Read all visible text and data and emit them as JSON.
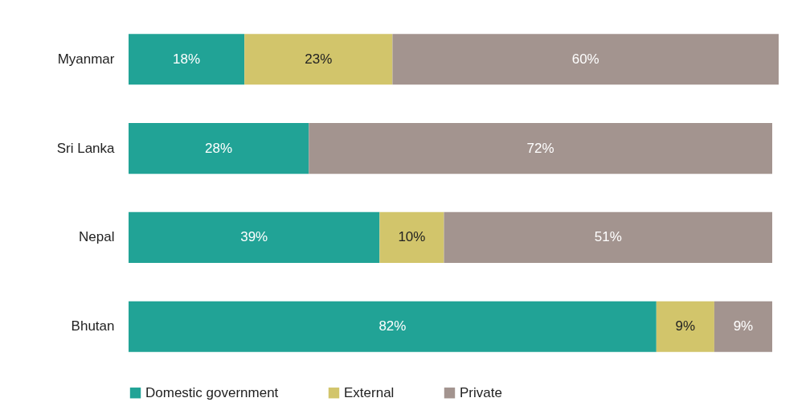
{
  "chart_data": {
    "type": "bar",
    "orientation": "horizontal",
    "stacked": true,
    "legend": "bottom",
    "categories": [
      "Myanmar",
      "Sri Lanka",
      "Nepal",
      "Bhutan"
    ],
    "series": [
      {
        "name": "Domestic government",
        "color": "#21a396",
        "values": [
          18,
          28,
          39,
          82
        ],
        "value_labels": [
          "18%",
          "28%",
          "39%",
          "82%"
        ]
      },
      {
        "name": "External",
        "color": "#d2c56b",
        "values": [
          23,
          null,
          10,
          9
        ],
        "value_labels": [
          "23%",
          null,
          "10%",
          "9%"
        ]
      },
      {
        "name": "Private",
        "color": "#a3948f",
        "values": [
          60,
          72,
          51,
          9
        ],
        "value_labels": [
          "60%",
          "72%",
          "51%",
          "9%"
        ]
      }
    ]
  }
}
